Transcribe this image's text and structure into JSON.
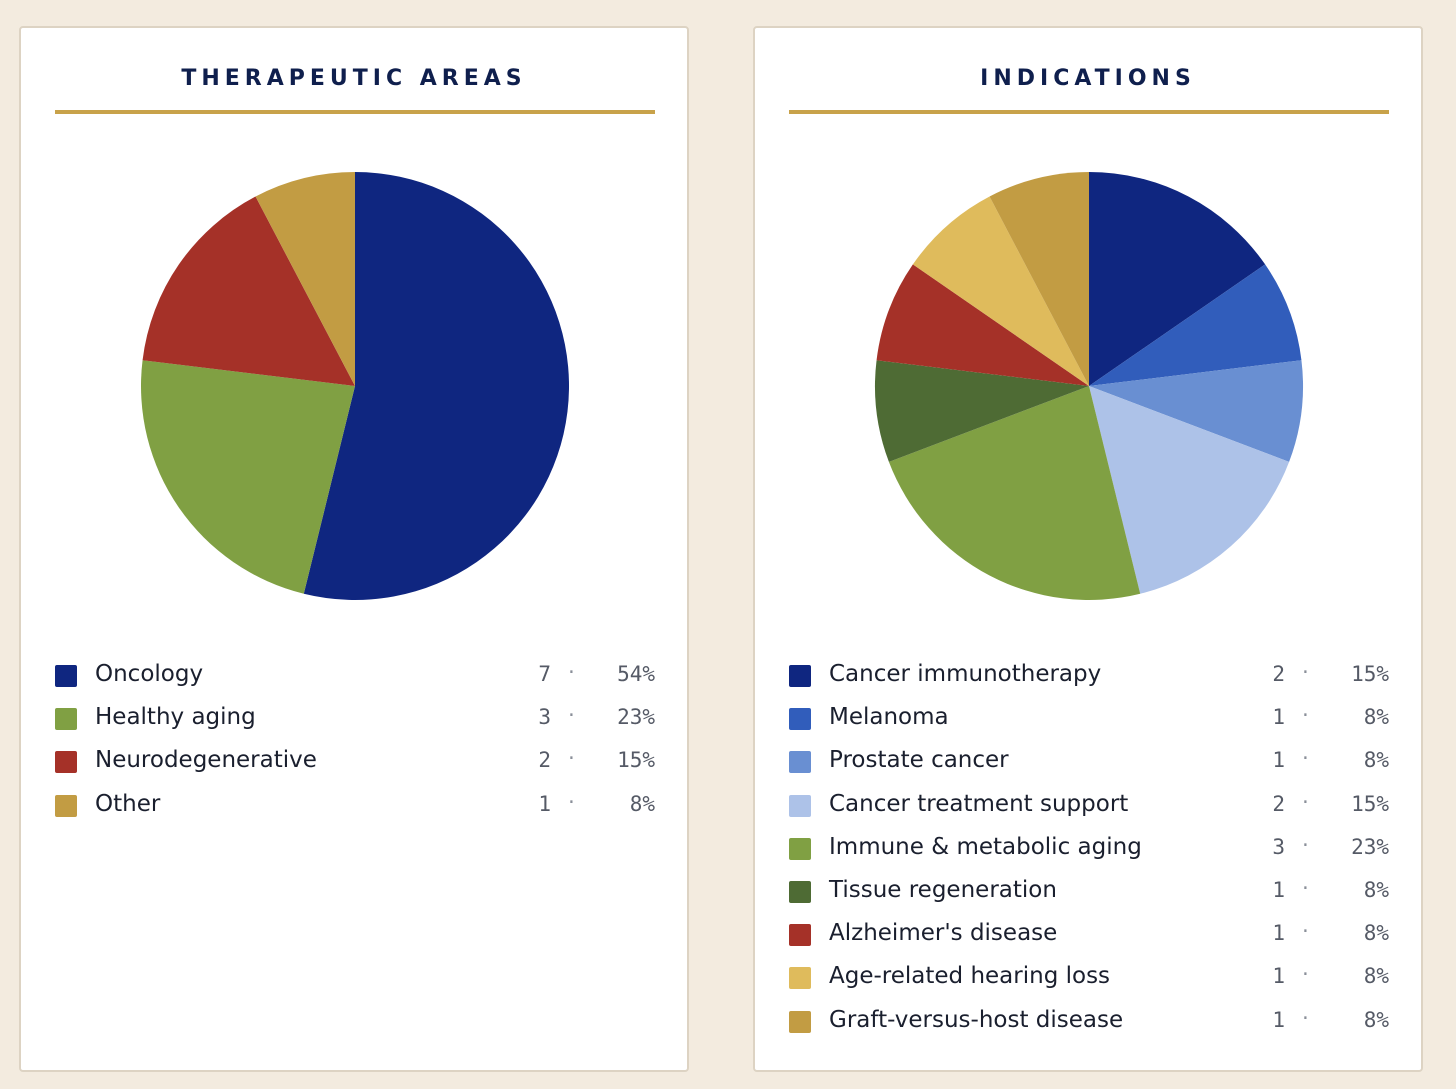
{
  "chart_data": [
    {
      "type": "pie",
      "title": "THERAPEUTIC AREAS",
      "slices": [
        {
          "label": "Oncology",
          "count": "7",
          "percent": "54%",
          "value": 7,
          "color": "#0f2680"
        },
        {
          "label": "Healthy aging",
          "count": "3",
          "percent": "23%",
          "value": 3,
          "color": "#80a043"
        },
        {
          "label": "Neurodegenerative",
          "count": "2",
          "percent": "15%",
          "value": 2,
          "color": "#a53128"
        },
        {
          "label": "Other",
          "count": "1",
          "percent": "8%",
          "value": 1,
          "color": "#c29c43"
        }
      ],
      "accent": "#c8a24a"
    },
    {
      "type": "pie",
      "title": "INDICATIONS",
      "slices": [
        {
          "label": "Cancer immunotherapy",
          "count": "2",
          "percent": "15%",
          "value": 2,
          "color": "#0f2680"
        },
        {
          "label": "Melanoma",
          "count": "1",
          "percent": "8%",
          "value": 1,
          "color": "#315dbb"
        },
        {
          "label": "Prostate cancer",
          "count": "1",
          "percent": "8%",
          "value": 1,
          "color": "#698fd2"
        },
        {
          "label": "Cancer treatment support",
          "count": "2",
          "percent": "15%",
          "value": 2,
          "color": "#adc2e8"
        },
        {
          "label": "Immune & metabolic aging",
          "count": "3",
          "percent": "23%",
          "value": 3,
          "color": "#80a043"
        },
        {
          "label": "Tissue regeneration",
          "count": "1",
          "percent": "8%",
          "value": 1,
          "color": "#4e6b34"
        },
        {
          "label": "Alzheimer's disease",
          "count": "1",
          "percent": "8%",
          "value": 1,
          "color": "#a53128"
        },
        {
          "label": "Age-related hearing loss",
          "count": "1",
          "percent": "8%",
          "value": 1,
          "color": "#dfbb5c"
        },
        {
          "label": "Graft-versus-host disease",
          "count": "1",
          "percent": "8%",
          "value": 1,
          "color": "#c29c43"
        }
      ],
      "accent": "#c8a24a"
    }
  ],
  "separator": "·"
}
